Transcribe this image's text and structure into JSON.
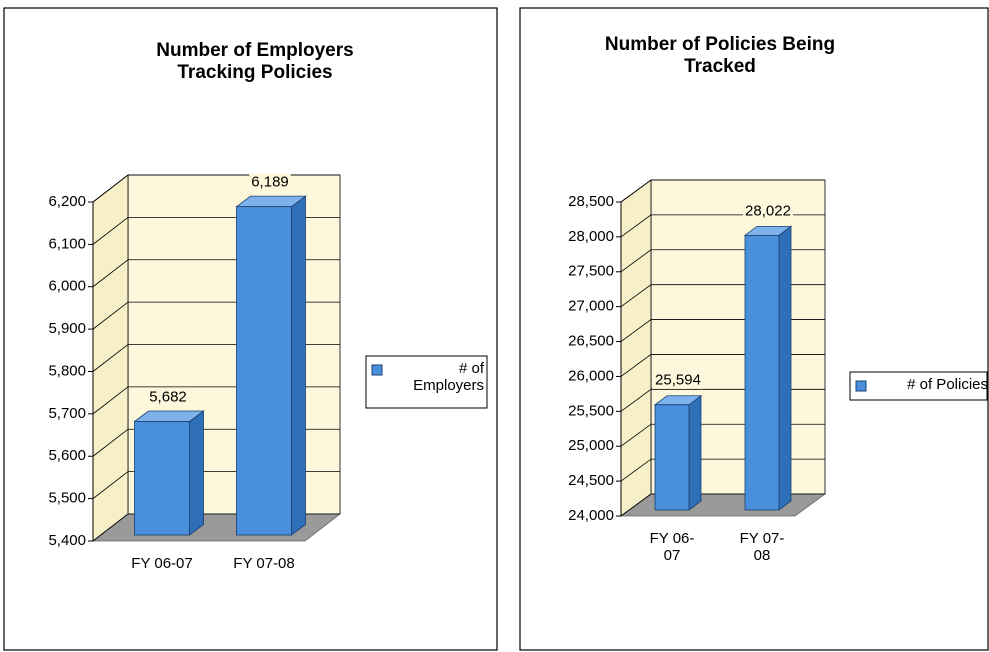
{
  "chart_data": [
    {
      "type": "bar3d",
      "title": "Number of Employers Tracking Policies",
      "categories": [
        "FY 06-07",
        "FY 07-08"
      ],
      "series": [
        {
          "name": "# of Employers",
          "color": "#4a8fdc",
          "values": [
            5682,
            6189
          ],
          "value_labels": [
            "5,682",
            "6,189"
          ]
        }
      ],
      "ylim": [
        5400,
        6200
      ],
      "yticks": [
        {
          "value": 5400,
          "label": "5,400"
        },
        {
          "value": 5500,
          "label": "5,500"
        },
        {
          "value": 5600,
          "label": "5,600"
        },
        {
          "value": 5700,
          "label": "5,700"
        },
        {
          "value": 5800,
          "label": "5,800"
        },
        {
          "value": 5900,
          "label": "5,900"
        },
        {
          "value": 6000,
          "label": "6,000"
        },
        {
          "value": 6100,
          "label": "6,100"
        },
        {
          "value": 6200,
          "label": "6,200"
        }
      ],
      "grid": true,
      "legend": "right"
    },
    {
      "type": "bar3d",
      "title": "Number of Policies Being Tracked",
      "categories": [
        "FY 06-07",
        "FY 07-08"
      ],
      "series": [
        {
          "name": "# of Policies",
          "color": "#4a8fdc",
          "values": [
            25594,
            28022
          ],
          "value_labels": [
            "25,594",
            "28,022"
          ]
        }
      ],
      "ylim": [
        24000,
        28500
      ],
      "yticks": [
        {
          "value": 24000,
          "label": "24,000"
        },
        {
          "value": 24500,
          "label": "24,500"
        },
        {
          "value": 25000,
          "label": "25,000"
        },
        {
          "value": 25500,
          "label": "25,500"
        },
        {
          "value": 26000,
          "label": "26,000"
        },
        {
          "value": 26500,
          "label": "26,500"
        },
        {
          "value": 27000,
          "label": "27,000"
        },
        {
          "value": 27500,
          "label": "27,500"
        },
        {
          "value": 28000,
          "label": "28,000"
        },
        {
          "value": 28500,
          "label": "28,500"
        }
      ],
      "grid": true,
      "legend": "right"
    }
  ]
}
